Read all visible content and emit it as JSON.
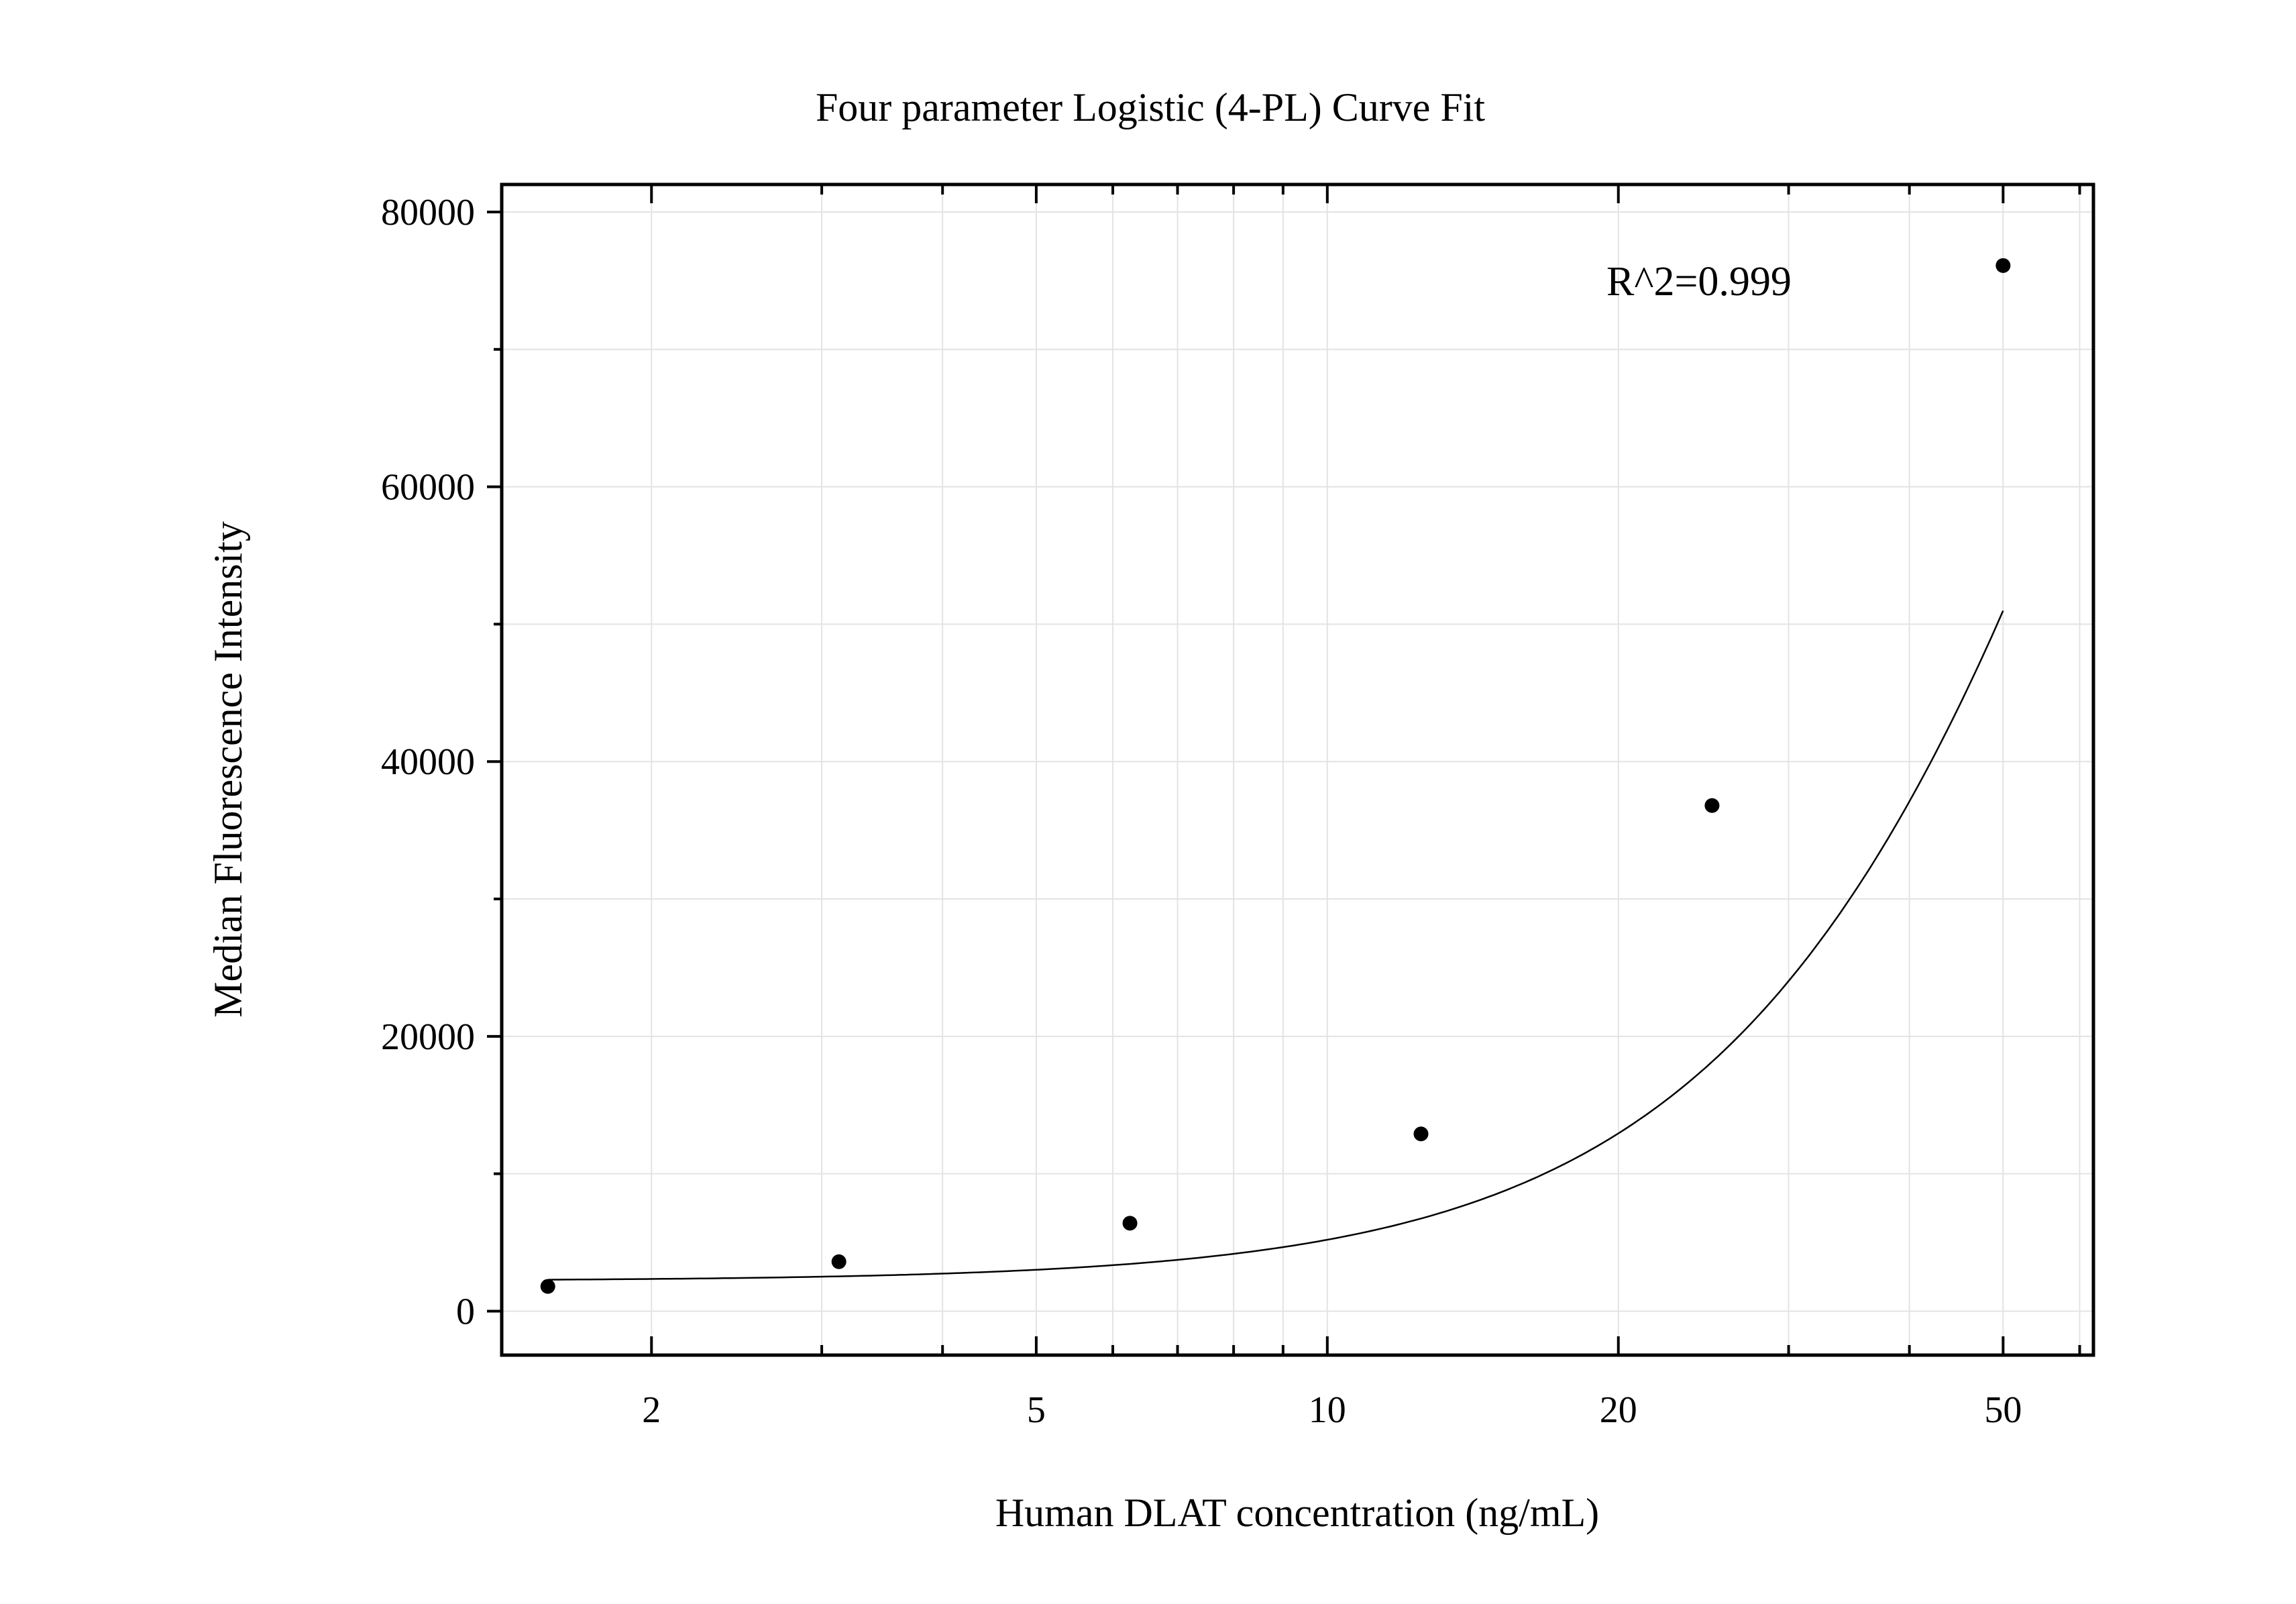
{
  "chart_data": {
    "type": "scatter",
    "title": "Four parameter Logistic (4-PL) Curve Fit",
    "xlabel": "Human DLAT concentration (ng/mL)",
    "ylabel": "Median Fluorescence Intensity",
    "x_scale": "log",
    "xlim": [
      1.4,
      62
    ],
    "ylim": [
      -3200,
      82000
    ],
    "x_ticks": [
      2,
      5,
      10,
      20,
      50
    ],
    "x_tick_labels": [
      "2",
      "5",
      "10",
      "20",
      "50"
    ],
    "y_ticks": [
      0,
      20000,
      40000,
      60000,
      80000
    ],
    "y_tick_labels": [
      "0",
      "20000",
      "40000",
      "60000",
      "80000"
    ],
    "grid": true,
    "annotation": "R^2=0.999",
    "series": [
      {
        "x": [
          1.5625,
          3.125,
          6.25,
          12.5,
          25,
          50
        ],
        "y": [
          1800,
          3600,
          6400,
          12900,
          36800,
          76100
        ]
      }
    ],
    "fit": {
      "model": "4PL",
      "a": 2200,
      "d": 200000,
      "c": 90,
      "b": 1.9,
      "x_range": [
        1.5625,
        50
      ]
    },
    "colors": {
      "points": "#000000",
      "curve": "#000000",
      "grid": "#e3e3e3",
      "frame": "#000000"
    }
  }
}
